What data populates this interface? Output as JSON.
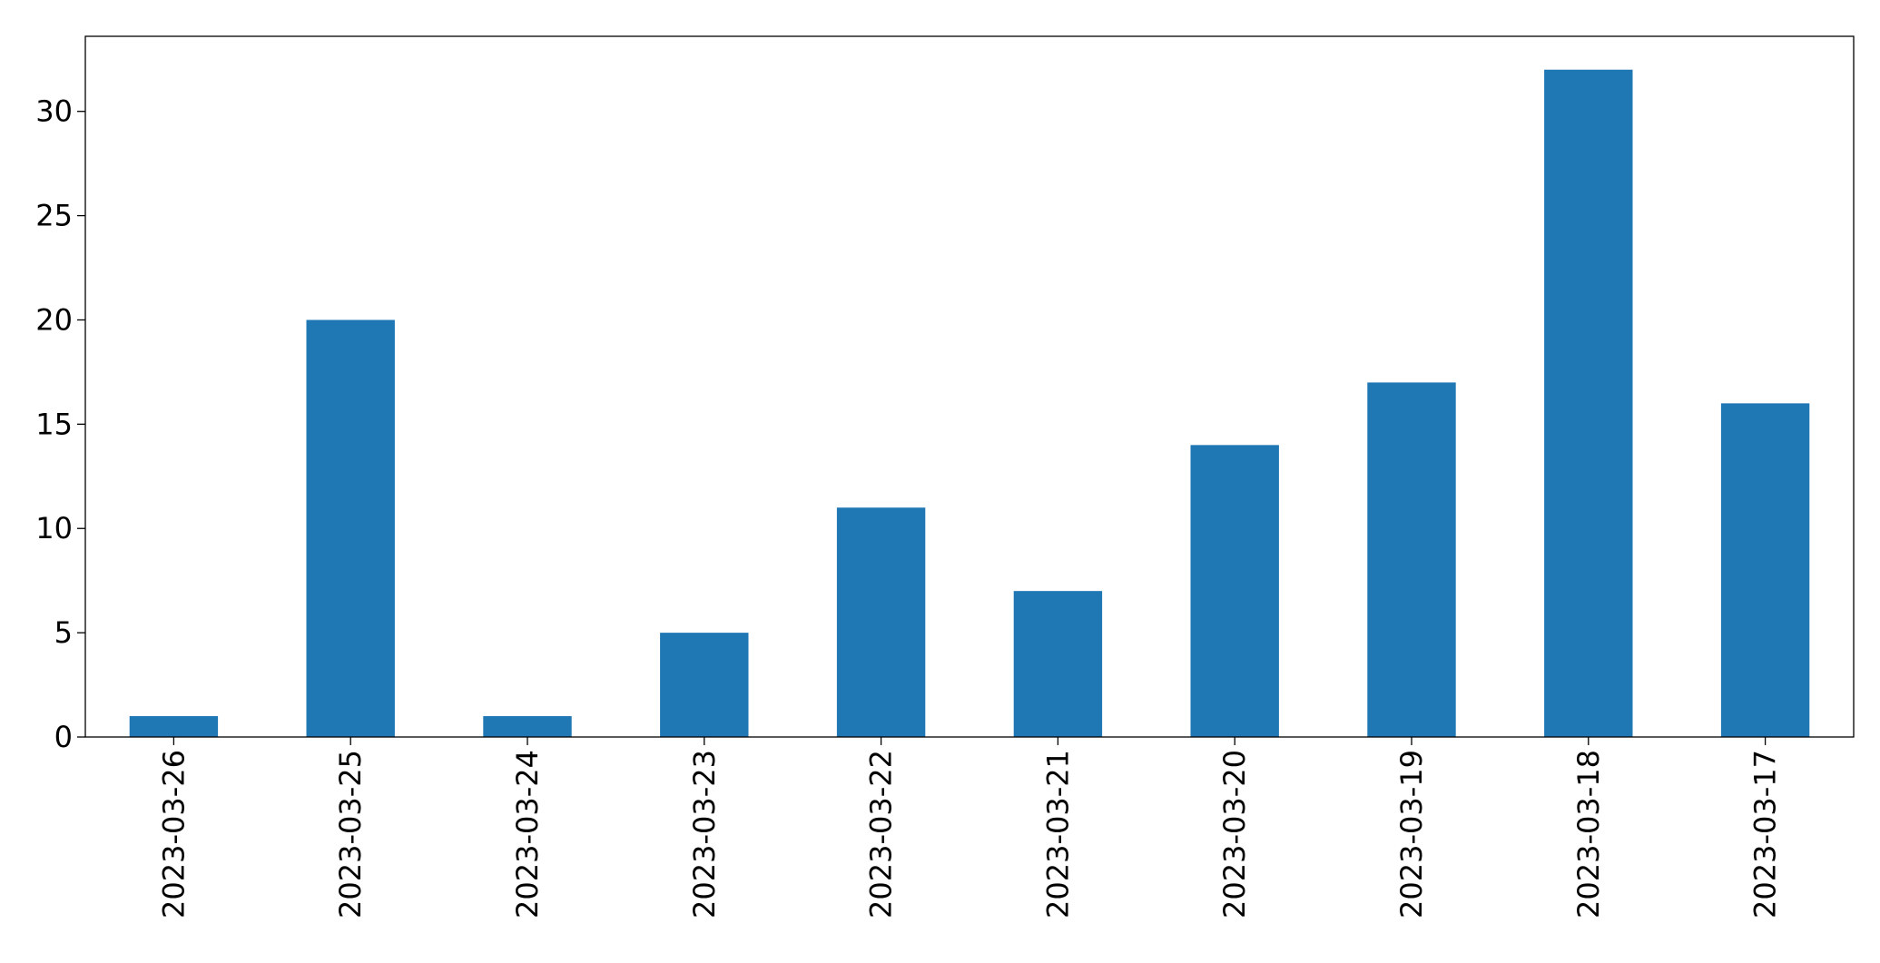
{
  "chart_data": {
    "type": "bar",
    "categories": [
      "2023-03-26",
      "2023-03-25",
      "2023-03-24",
      "2023-03-23",
      "2023-03-22",
      "2023-03-21",
      "2023-03-20",
      "2023-03-19",
      "2023-03-18",
      "2023-03-17"
    ],
    "values": [
      1,
      20,
      1,
      5,
      11,
      7,
      14,
      17,
      32,
      16
    ],
    "color": "#1f77b4",
    "ylim": [
      0,
      33.6
    ],
    "yticks": [
      0,
      5,
      10,
      15,
      20,
      25,
      30
    ],
    "grid": false
  }
}
